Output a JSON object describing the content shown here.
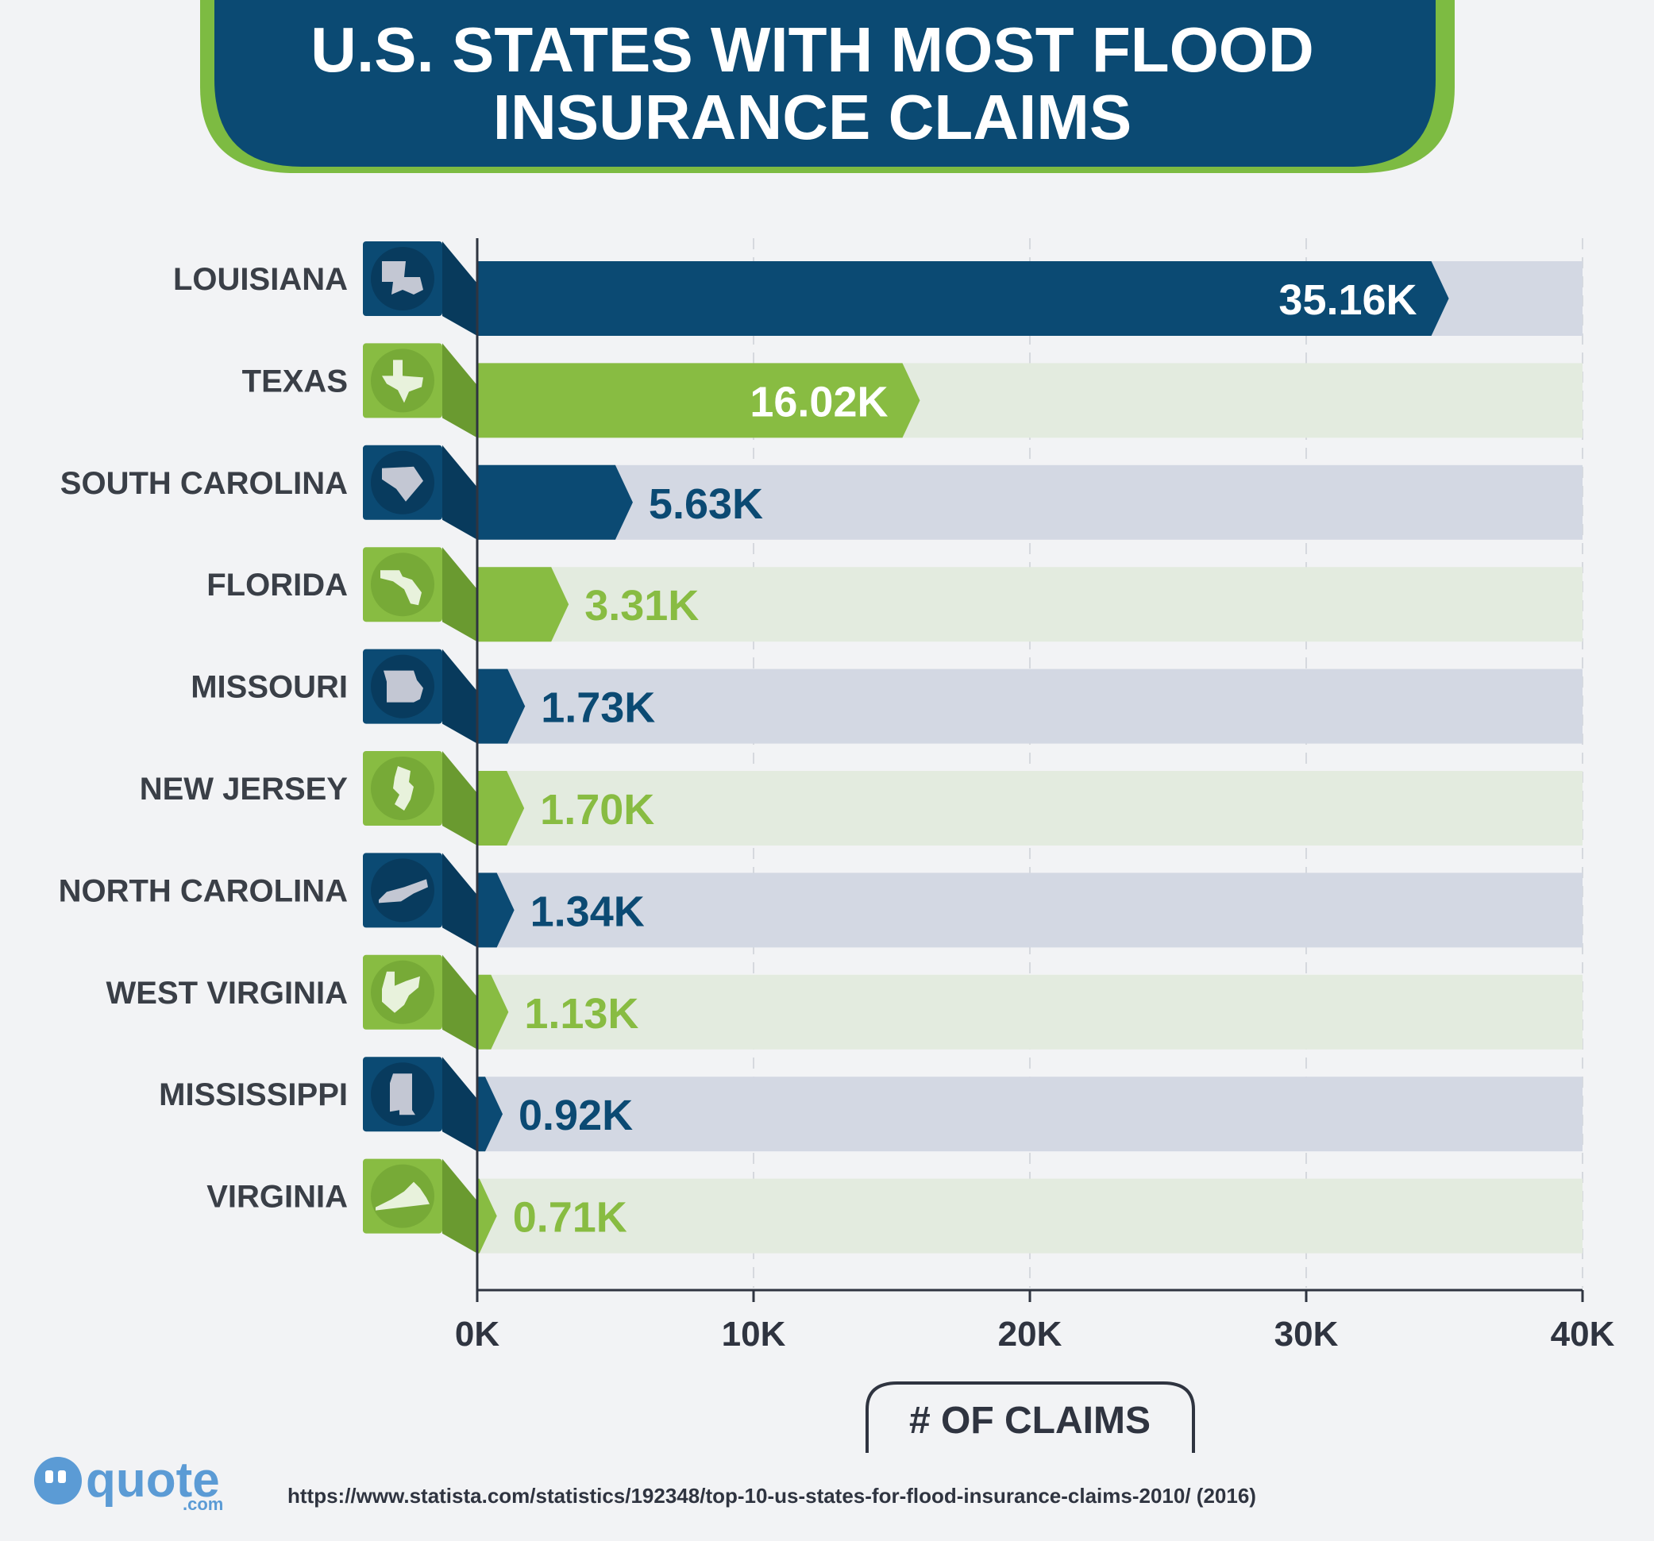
{
  "header": {
    "title_line1": "U.S. STATES WITH MOST FLOOD",
    "title_line2": "INSURANCE CLAIMS"
  },
  "colors": {
    "navy": "#0b4a73",
    "navy_dark": "#083a5c",
    "navy_track": "#d3d8e3",
    "green": "#88bc42",
    "green_dark": "#6a9a30",
    "green_track": "#e3ebdf",
    "background": "#f2f3f5"
  },
  "chart_data": {
    "type": "bar",
    "orientation": "horizontal",
    "title": "U.S. STATES WITH MOST FLOOD INSURANCE CLAIMS",
    "xlabel": "# OF CLAIMS",
    "ylabel": "",
    "xlim": [
      0,
      40000
    ],
    "x_ticks": [
      0,
      10000,
      20000,
      30000,
      40000
    ],
    "x_tick_labels": [
      "0K",
      "10K",
      "20K",
      "30K",
      "40K"
    ],
    "grid": true,
    "categories": [
      "LOUISIANA",
      "TEXAS",
      "SOUTH CAROLINA",
      "FLORIDA",
      "MISSOURI",
      "NEW JERSEY",
      "NORTH CAROLINA",
      "WEST VIRGINIA",
      "MISSISSIPPI",
      "VIRGINIA"
    ],
    "values": [
      35160,
      16020,
      5630,
      3310,
      1730,
      1700,
      1340,
      1130,
      920,
      710
    ],
    "value_labels": [
      "35.16K",
      "16.02K",
      "5.63K",
      "3.31K",
      "1.73K",
      "1.70K",
      "1.34K",
      "1.13K",
      "0.92K",
      "0.71K"
    ],
    "color_scheme": [
      "navy",
      "green",
      "navy",
      "green",
      "navy",
      "green",
      "navy",
      "green",
      "navy",
      "green"
    ],
    "icons": [
      "louisiana-state-icon",
      "texas-state-icon",
      "south-carolina-state-icon",
      "florida-state-icon",
      "missouri-state-icon",
      "new-jersey-state-icon",
      "north-carolina-state-icon",
      "west-virginia-state-icon",
      "mississippi-state-icon",
      "virginia-state-icon"
    ]
  },
  "footer": {
    "logo_text": "quote",
    "logo_domain": ".com",
    "source": "https://www.statista.com/statistics/192348/top-10-us-states-for-flood-insurance-claims-2010/ (2016)"
  }
}
